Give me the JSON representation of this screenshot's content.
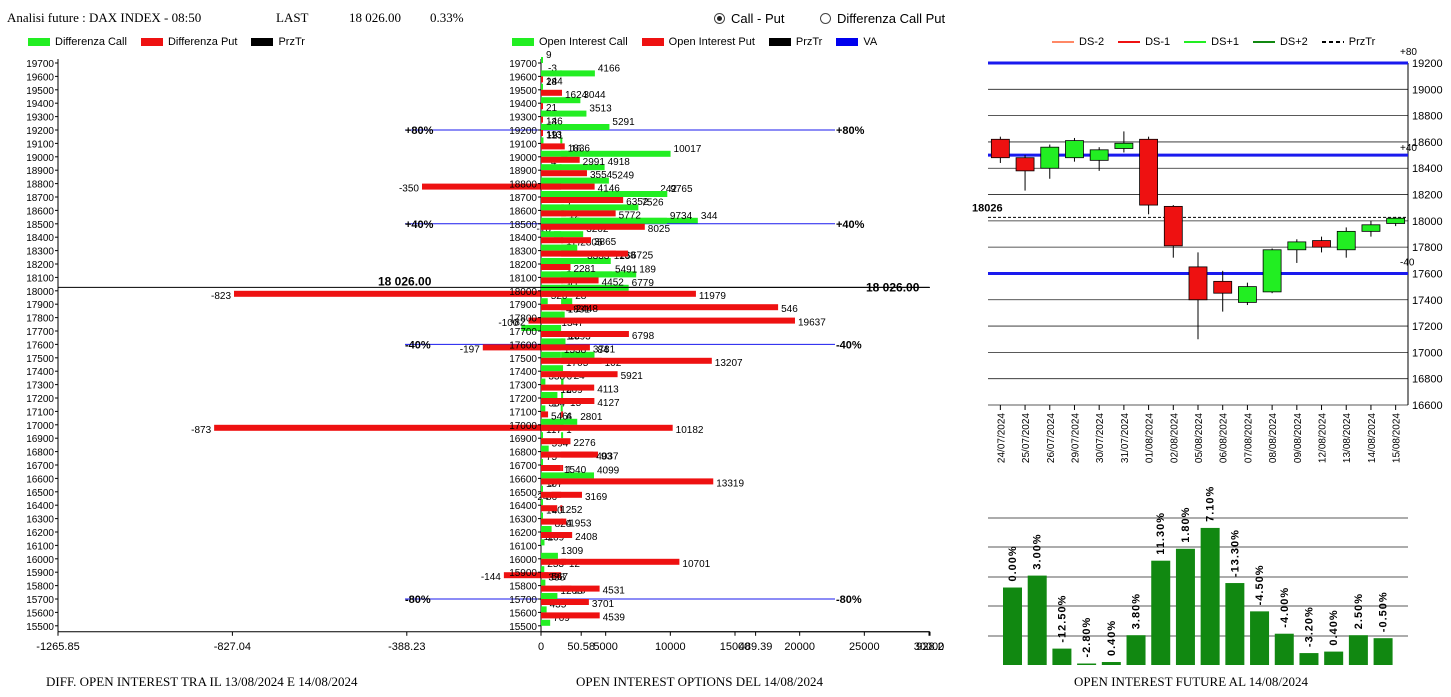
{
  "header": {
    "title": "Analisi future : DAX INDEX - 08:50",
    "last_label": "LAST",
    "last_value": "18 026.00",
    "last_change": "0.33%"
  },
  "toggle": {
    "options": [
      {
        "label": "Call - Put",
        "selected": true
      },
      {
        "label": "Differenza Call Put",
        "selected": false
      }
    ]
  },
  "panel1": {
    "legend": [
      {
        "label": "Differenza Call",
        "color": "#22ee22"
      },
      {
        "label": "Differenza Put",
        "color": "#ee1111"
      },
      {
        "label": "PrzTr",
        "color": "#000000"
      }
    ],
    "footer": "DIFF. OPEN INTEREST TRA IL 13/08/2024 E 14/08/2024"
  },
  "panel2": {
    "legend": [
      {
        "label": "Open Interest Call",
        "color": "#22ee22"
      },
      {
        "label": "Open Interest Put",
        "color": "#ee1111"
      },
      {
        "label": "PrzTr",
        "color": "#000000"
      },
      {
        "label": "VA",
        "color": "#0000ee"
      }
    ],
    "footer": "OPEN INTEREST OPTIONS DEL 14/08/2024"
  },
  "panel3": {
    "legend": [
      {
        "label": "DS-2",
        "color": "#ff8866"
      },
      {
        "label": "DS-1",
        "color": "#ee1111"
      },
      {
        "label": "DS+1",
        "color": "#22ee22"
      },
      {
        "label": "DS+2",
        "color": "#118811"
      },
      {
        "label": "PrzTr",
        "color": "#000000"
      }
    ],
    "footer": "OPEN INTEREST FUTURE AL 14/08/2024"
  },
  "chart_data": [
    {
      "type": "bar",
      "id": "diff",
      "strikes": [
        19700,
        19600,
        19500,
        19400,
        19300,
        19200,
        19100,
        19000,
        18900,
        18800,
        18700,
        18600,
        18500,
        18400,
        18300,
        18200,
        18100,
        18000,
        17900,
        17800,
        17700,
        17600,
        17500,
        17400,
        17300,
        17200,
        17100,
        17000,
        16900,
        16800,
        16700,
        16600,
        16500,
        16400,
        16300,
        16200,
        16100,
        16000,
        15900,
        15800,
        15700,
        15600,
        15500
      ],
      "series": [
        {
          "name": "Differenza Call",
          "values": [
            null,
            -3,
            null,
            null,
            null,
            -3,
            -2,
            16,
            -4,
            null,
            242,
            7,
            344,
            -18,
            17,
            125,
            189,
            11,
            28,
            4,
            -100,
            1,
            84,
            null,
            6,
            5,
            -1,
            6,
            1,
            null,
            null,
            null,
            null,
            null,
            null,
            null,
            null,
            null,
            null,
            null,
            null,
            null,
            null
          ]
        },
        {
          "name": "Differenza Put",
          "values": [
            null,
            null,
            null,
            null,
            null,
            null,
            null,
            null,
            null,
            -350,
            null,
            12,
            null,
            1,
            138,
            1,
            1,
            -823,
            546,
            -82,
            12,
            -197,
            102,
            24,
            2,
            15,
            4,
            -873,
            null,
            93,
            1,
            -9,
            -24,
            -2,
            4,
            -11,
            null,
            12,
            -144,
            26,
            null,
            null,
            null
          ]
        }
      ],
      "xticks": [
        "-1265.85",
        "-827.04",
        "-388.23",
        "50.58",
        "489.39",
        "928.2"
      ],
      "xlim": [
        -1265.85,
        928.2
      ],
      "price_line": {
        "label": "18 026.00",
        "value": 18026
      },
      "level_lines": [
        {
          "label": "80%",
          "strike": 19200
        },
        {
          "label": "40%",
          "strike": 18500
        },
        {
          "label": "-40%",
          "strike": 17600
        },
        {
          "label": "-80%",
          "strike": 15700
        }
      ]
    },
    {
      "type": "bar",
      "id": "oi",
      "strikes": [
        19700,
        19600,
        19500,
        19400,
        19300,
        19200,
        19100,
        19000,
        18900,
        18800,
        18700,
        18600,
        18500,
        18400,
        18300,
        18200,
        18100,
        18000,
        17900,
        17800,
        17700,
        17600,
        17500,
        17400,
        17300,
        17200,
        17100,
        17000,
        16900,
        16800,
        16700,
        16600,
        16500,
        16400,
        16300,
        16200,
        16100,
        16000,
        15900,
        15800,
        15700,
        15600,
        15500
      ],
      "series": [
        {
          "name": "Open Interest Call",
          "values": [
            9,
            4166,
            28,
            3044,
            3513,
            5291,
            191,
            10017,
            4918,
            5249,
            9765,
            7526,
            9734,
            3262,
            2805,
            3333,
            5491,
            6779,
            520,
            1831,
            1347,
            1893,
            1538,
            1705,
            338,
            1269,
            334,
            2801,
            117,
            594,
            75,
            4099,
            107,
            86,
            140,
            820,
            269,
            1309,
            253,
            338,
            1268,
            435,
            709
          ]
        },
        {
          "name": "Open Interest Put",
          "values": [
            null,
            144,
            1624,
            21,
            146,
            113,
            1836,
            2991,
            3554,
            4146,
            6352,
            5772,
            8025,
            3865,
            6725,
            2281,
            4452,
            11979,
            2448,
            19637,
            6798,
            3781,
            13207,
            5921,
            4113,
            4127,
            546,
            10182,
            2276,
            4037,
            1540,
            13319,
            3169,
            1252,
            1953,
            2408,
            null,
            10701,
            567,
            4531,
            3701,
            4539,
            null
          ]
        }
      ],
      "xticks": [
        "0",
        "5000",
        "10000",
        "15000",
        "20000",
        "25000",
        "30000"
      ],
      "xlim": [
        0,
        30000
      ],
      "price_line": {
        "label": "18 026.00",
        "value": 18026
      },
      "level_lines": [
        {
          "label": "80%",
          "strike": 19200
        },
        {
          "label": "40%",
          "strike": 18500
        },
        {
          "label": "-40%",
          "strike": 17600
        },
        {
          "label": "-80%",
          "strike": 15700
        }
      ]
    },
    {
      "type": "candlestick",
      "id": "candles",
      "x": [
        "24/07/2024",
        "25/07/2024",
        "26/07/2024",
        "29/07/2024",
        "30/07/2024",
        "31/07/2024",
        "01/08/2024",
        "02/08/2024",
        "05/08/2024",
        "06/08/2024",
        "07/08/2024",
        "08/08/2024",
        "09/08/2024",
        "12/08/2024",
        "13/08/2024",
        "14/08/2024",
        "15/08/2024"
      ],
      "ohlc": [
        [
          18620,
          18640,
          18440,
          18480
        ],
        [
          18480,
          18500,
          18230,
          18380
        ],
        [
          18400,
          18580,
          18320,
          18560
        ],
        [
          18480,
          18630,
          18450,
          18610
        ],
        [
          18460,
          18560,
          18380,
          18540
        ],
        [
          18550,
          18680,
          18520,
          18590
        ],
        [
          18620,
          18640,
          18050,
          18120
        ],
        [
          18110,
          18120,
          17720,
          17810
        ],
        [
          17650,
          17760,
          17100,
          17400
        ],
        [
          17540,
          17620,
          17310,
          17450
        ],
        [
          17380,
          17530,
          17360,
          17500
        ],
        [
          17460,
          17790,
          17450,
          17780
        ],
        [
          17780,
          17860,
          17680,
          17840
        ],
        [
          17850,
          17880,
          17760,
          17800
        ],
        [
          17780,
          17950,
          17720,
          17920
        ],
        [
          17920,
          18000,
          17880,
          17970
        ],
        [
          17980,
          18030,
          17960,
          18020
        ]
      ],
      "ylim": [
        16600,
        19200
      ],
      "yticks": [
        "16600",
        "16800",
        "17000",
        "17200",
        "17400",
        "17600",
        "17800",
        "18000",
        "18200",
        "18400",
        "18600",
        "18800",
        "19000",
        "19200"
      ],
      "price_label": "18026",
      "price_value": 18026,
      "band_lines": [
        {
          "label": "+80",
          "value": 19200
        },
        {
          "label": "+40",
          "value": 18500
        },
        {
          "label": "-40",
          "value": 17600
        }
      ]
    },
    {
      "type": "bar",
      "id": "future_oi",
      "labels": [
        "0.00%",
        "3.00%",
        "-12.50%",
        "-2.80%",
        "0.40%",
        "3.80%",
        "11.30%",
        "1.80%",
        "7.10%",
        "-13.30%",
        "-4.50%",
        "-4.00%",
        "-3.20%",
        "0.40%",
        "2.50%",
        "-0.50%"
      ],
      "values": [
        52,
        60,
        11,
        1,
        2,
        20,
        70,
        78,
        92,
        55,
        36,
        21,
        8,
        9,
        20,
        18
      ]
    }
  ]
}
